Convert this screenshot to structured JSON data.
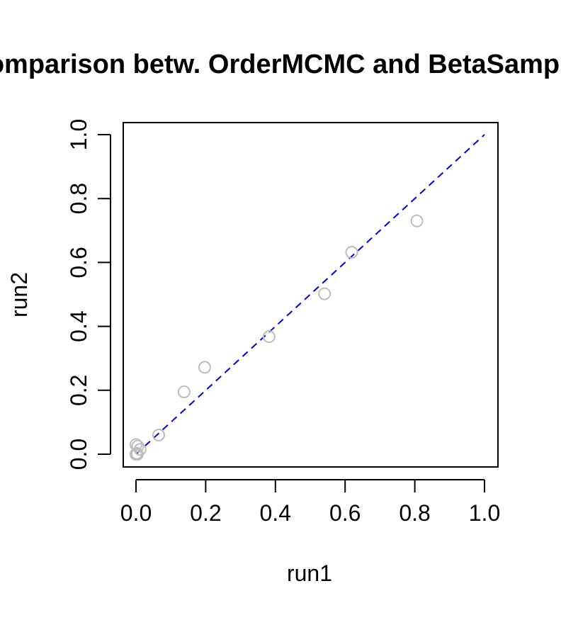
{
  "chart_data": {
    "type": "scatter",
    "title": "Comparison betw. OrderMCMC and BetaSampler",
    "xlabel": "run1",
    "ylabel": "run2",
    "xlim": [
      0,
      1
    ],
    "ylim": [
      0,
      1
    ],
    "xticks": [
      "0.0",
      "0.2",
      "0.4",
      "0.6",
      "0.8",
      "1.0"
    ],
    "yticks": [
      "0.0",
      "0.2",
      "0.4",
      "0.6",
      "0.8",
      "1.0"
    ],
    "grid": false,
    "legend": "none",
    "point_color": "#bdbdbd",
    "reference_line": {
      "from": [
        0,
        0
      ],
      "to": [
        1,
        1
      ],
      "color": "#0000dd",
      "style": "dashed"
    },
    "points": [
      {
        "x": 0.0,
        "y": 0.0
      },
      {
        "x": 0.002,
        "y": 0.003
      },
      {
        "x": 0.004,
        "y": 0.0
      },
      {
        "x": 0.0,
        "y": 0.03
      },
      {
        "x": 0.005,
        "y": 0.025
      },
      {
        "x": 0.012,
        "y": 0.015
      },
      {
        "x": 0.065,
        "y": 0.06
      },
      {
        "x": 0.138,
        "y": 0.195
      },
      {
        "x": 0.197,
        "y": 0.272
      },
      {
        "x": 0.382,
        "y": 0.368
      },
      {
        "x": 0.541,
        "y": 0.502
      },
      {
        "x": 0.619,
        "y": 0.632
      },
      {
        "x": 0.806,
        "y": 0.73
      }
    ]
  }
}
